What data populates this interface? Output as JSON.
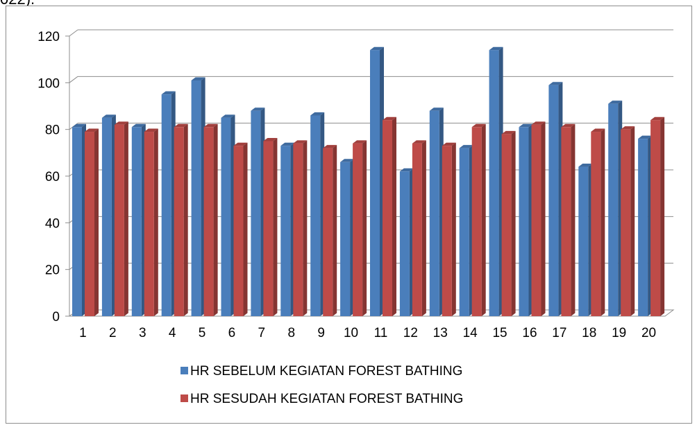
{
  "fragment_text": "022).",
  "chart_data": {
    "type": "bar",
    "categories": [
      "1",
      "2",
      "3",
      "4",
      "5",
      "6",
      "7",
      "8",
      "9",
      "10",
      "11",
      "12",
      "13",
      "14",
      "15",
      "16",
      "17",
      "18",
      "19",
      "20"
    ],
    "series": [
      {
        "name": "HR SEBELUM KEGIATAN FOREST BATHING",
        "color": "#4a7ebb",
        "values": [
          81,
          85,
          81,
          95,
          101,
          85,
          88,
          73,
          86,
          66,
          114,
          62,
          88,
          72,
          114,
          81,
          99,
          64,
          91,
          76
        ]
      },
      {
        "name": "HR SESUDAH KEGIATAN FOREST BATHING",
        "color": "#be4b48",
        "values": [
          79,
          82,
          79,
          81,
          81,
          73,
          75,
          74,
          72,
          74,
          84,
          74,
          73,
          81,
          78,
          82,
          81,
          79,
          80,
          84
        ]
      }
    ],
    "yticks": [
      0,
      20,
      40,
      60,
      80,
      100,
      120
    ],
    "ylim": [
      0,
      120
    ],
    "grid": true,
    "legend_position": "bottom"
  }
}
